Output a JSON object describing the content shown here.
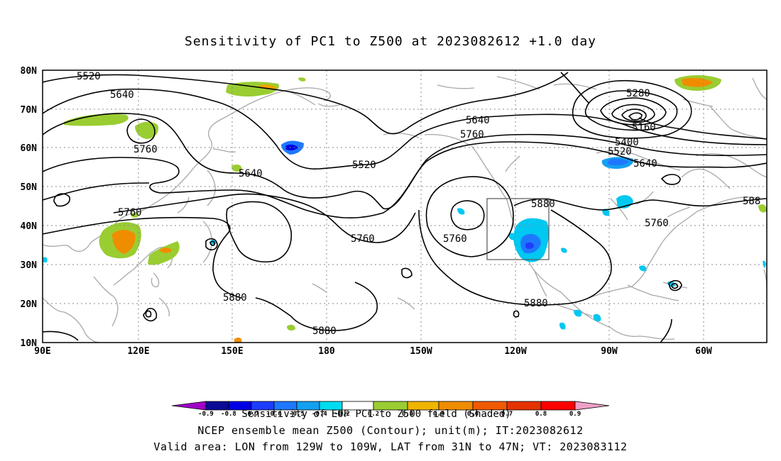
{
  "title": "Sensitivity of PC1 to Z500 at 2023082612 +1.0 day",
  "map": {
    "lat_labels": [
      "80N",
      "70N",
      "60N",
      "50N",
      "40N",
      "30N",
      "20N",
      "10N"
    ],
    "lon_labels": [
      "90E",
      "120E",
      "150E",
      "180",
      "150W",
      "120W",
      "90W",
      "60W"
    ],
    "contour_labels": [
      "5520",
      "5640",
      "5760",
      "5640",
      "5760",
      "5880",
      "5520",
      "5640",
      "5760",
      "5760",
      "5760",
      "5880",
      "5880",
      "5880",
      "5280",
      "5160",
      "5400",
      "5520",
      "5640",
      "5760",
      "588"
    ],
    "valid_box": {
      "lon_from": "129W",
      "lon_to": "109W",
      "lat_from": "31N",
      "lat_to": "47N"
    }
  },
  "colorbar": {
    "ticks": [
      "-0.9",
      "-0.8",
      "-0.7",
      "-0.6",
      "-0.5",
      "-0.4",
      "-0.2",
      "0.2",
      "0.4",
      "0.5",
      "0.6",
      "0.7",
      "0.8",
      "0.9"
    ],
    "colors": [
      "#a000c8",
      "#0a0a96",
      "#0000e6",
      "#1e3cff",
      "#1e78ff",
      "#14a0f0",
      "#00dcf0",
      "#ffffff",
      "#9acd32",
      "#f0b400",
      "#f08c00",
      "#f05a00",
      "#e63200",
      "#ff0000",
      "#f0a0c8"
    ],
    "caption": "Sensitivity of EOF PC1 to Z500 field (Shaded)"
  },
  "footer": {
    "line1": "NCEP ensemble mean Z500 (Contour); unit(m); IT:2023082612",
    "line2": "Valid area: LON from 129W to 109W, LAT from 31N to 47N; VT: 2023083112"
  }
}
